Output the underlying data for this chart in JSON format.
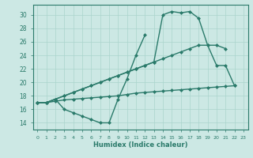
{
  "xlabel": "Humidex (Indice chaleur)",
  "bg_color": "#cce8e4",
  "grid_color": "#aad4cc",
  "line_color": "#2a7a6a",
  "xlim": [
    -0.5,
    23.5
  ],
  "ylim": [
    13.0,
    31.5
  ],
  "xticks": [
    0,
    1,
    2,
    3,
    4,
    5,
    6,
    7,
    8,
    9,
    10,
    11,
    12,
    13,
    14,
    15,
    16,
    17,
    18,
    19,
    20,
    21,
    22,
    23
  ],
  "yticks": [
    14,
    16,
    18,
    20,
    22,
    24,
    26,
    28,
    30
  ],
  "s1_x": [
    0,
    1,
    2,
    3,
    4,
    5,
    6,
    7,
    8,
    9,
    10,
    11,
    12
  ],
  "s1_y": [
    17,
    17,
    17.5,
    16,
    15.5,
    15,
    14.5,
    14,
    14,
    17.5,
    20.5,
    24,
    27
  ],
  "s2_x": [
    0,
    1,
    2,
    3,
    4,
    5,
    6,
    7,
    8,
    9,
    10,
    11,
    12,
    13,
    14,
    15,
    16,
    17,
    18,
    19,
    20,
    21,
    22
  ],
  "s2_y": [
    17,
    17,
    17.2,
    17.4,
    17.5,
    17.6,
    17.7,
    17.8,
    17.9,
    18.0,
    18.2,
    18.4,
    18.5,
    18.6,
    18.7,
    18.8,
    18.9,
    19.0,
    19.1,
    19.2,
    19.3,
    19.4,
    19.5
  ],
  "s3_x": [
    0,
    1,
    2,
    3,
    4,
    5,
    6,
    7,
    8,
    9,
    10,
    11,
    12,
    13,
    14,
    15,
    16,
    17,
    18,
    19,
    20,
    21
  ],
  "s3_y": [
    17,
    17,
    17.5,
    18,
    18.5,
    19,
    19.5,
    20,
    20.5,
    21,
    21.5,
    22,
    22.5,
    23,
    23.5,
    24,
    24.5,
    25,
    25.5,
    25.5,
    25.5,
    25.0
  ],
  "s4_x": [
    0,
    1,
    2,
    3,
    4,
    5,
    6,
    7,
    8,
    9,
    10,
    11,
    12,
    13,
    14,
    15,
    16,
    17,
    18,
    19,
    20,
    21,
    22
  ],
  "s4_y": [
    17,
    17,
    17.5,
    18,
    18.5,
    19,
    19.5,
    20,
    20.5,
    21,
    21.5,
    22,
    22.5,
    23,
    30.0,
    30.5,
    30.3,
    30.5,
    29.5,
    25.5,
    22.5,
    22.5,
    19.5
  ]
}
